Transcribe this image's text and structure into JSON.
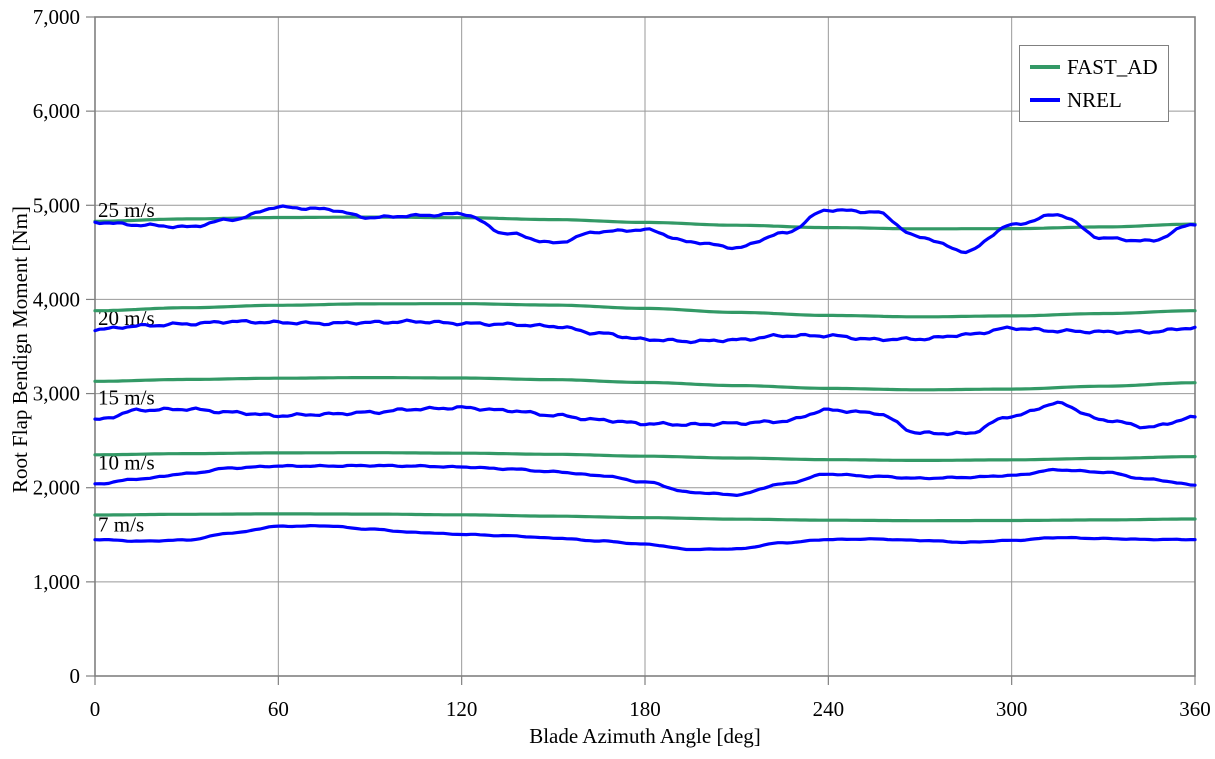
{
  "chart_data": {
    "type": "line",
    "title": "",
    "xlabel": "Blade Azimuth Angle [deg]",
    "ylabel": "Root Flap Bendign Moment [Nm]",
    "xlim": [
      0,
      360
    ],
    "ylim": [
      0,
      7000
    ],
    "x_ticks": [
      0,
      60,
      120,
      180,
      240,
      300,
      360
    ],
    "x_tick_labels": [
      "0",
      "60",
      "120",
      "180",
      "240",
      "300",
      "360"
    ],
    "y_ticks": [
      0,
      1000,
      2000,
      3000,
      4000,
      5000,
      6000,
      7000
    ],
    "y_tick_labels": [
      "0",
      "1,000",
      "2,000",
      "3,000",
      "4,000",
      "5,000",
      "6,000",
      "7,000"
    ],
    "grid": true,
    "colors": {
      "fast_ad": "#339966",
      "nrel": "#0000ff",
      "gridline": "#999999",
      "plot_border": "#808080",
      "tick": "#808080",
      "text": "#000000"
    },
    "legend": {
      "position": "top-right",
      "items": [
        {
          "label": "FAST_AD",
          "color": "#339966"
        },
        {
          "label": "NREL",
          "color": "#0000ff"
        }
      ]
    },
    "annotations": [
      {
        "text": "25 m/s",
        "x": 1,
        "y": 4950
      },
      {
        "text": "20 m/s",
        "x": 1,
        "y": 3805
      },
      {
        "text": "15 m/s",
        "x": 1,
        "y": 2960
      },
      {
        "text": "10 m/s",
        "x": 1,
        "y": 2270
      },
      {
        "text": "7 m/s",
        "x": 1,
        "y": 1610
      }
    ],
    "series": [
      {
        "name": "FAST_AD 25 m/s",
        "group": "FAST_AD",
        "wind_speed": "25 m/s",
        "color": "#339966",
        "noise": 0,
        "x_step": 30,
        "values": [
          4830,
          4855,
          4870,
          4875,
          4868,
          4848,
          4818,
          4788,
          4763,
          4750,
          4752,
          4770,
          4800
        ]
      },
      {
        "name": "FAST_AD 20 m/s",
        "group": "FAST_AD",
        "wind_speed": "20 m/s",
        "color": "#339966",
        "noise": 0,
        "x_step": 30,
        "values": [
          3880,
          3912,
          3938,
          3953,
          3955,
          3940,
          3905,
          3862,
          3830,
          3815,
          3825,
          3850,
          3880
        ]
      },
      {
        "name": "FAST_AD 15 m/s",
        "group": "FAST_AD",
        "wind_speed": "15 m/s",
        "color": "#339966",
        "noise": 0,
        "x_step": 30,
        "values": [
          3130,
          3150,
          3163,
          3170,
          3165,
          3148,
          3118,
          3085,
          3055,
          3040,
          3048,
          3078,
          3115
        ]
      },
      {
        "name": "FAST_AD 10 m/s",
        "group": "FAST_AD",
        "wind_speed": "10 m/s",
        "color": "#339966",
        "noise": 0,
        "x_step": 30,
        "values": [
          2350,
          2362,
          2370,
          2372,
          2367,
          2355,
          2335,
          2315,
          2298,
          2290,
          2296,
          2312,
          2330
        ]
      },
      {
        "name": "FAST_AD 7 m/s",
        "group": "FAST_AD",
        "wind_speed": "7 m/s",
        "color": "#339966",
        "noise": 0,
        "x_step": 30,
        "values": [
          1710,
          1718,
          1722,
          1720,
          1712,
          1698,
          1682,
          1666,
          1655,
          1650,
          1652,
          1658,
          1668
        ]
      },
      {
        "name": "NREL 25 m/s",
        "group": "NREL",
        "wind_speed": "25 m/s",
        "color": "#0000ff",
        "noise": 14,
        "x_step": 15,
        "values": [
          4820,
          4790,
          4770,
          4850,
          4980,
          4960,
          4870,
          4890,
          4910,
          4700,
          4600,
          4720,
          4740,
          4610,
          4550,
          4700,
          4950,
          4930,
          4660,
          4510,
          4790,
          4900,
          4650,
          4620,
          4800
        ]
      },
      {
        "name": "NREL 20 m/s",
        "group": "NREL",
        "wind_speed": "20 m/s",
        "color": "#0000ff",
        "noise": 16,
        "x_step": 15,
        "values": [
          3680,
          3720,
          3740,
          3765,
          3755,
          3745,
          3755,
          3765,
          3745,
          3735,
          3715,
          3640,
          3575,
          3555,
          3570,
          3615,
          3615,
          3575,
          3580,
          3625,
          3695,
          3665,
          3655,
          3655,
          3700
        ]
      },
      {
        "name": "NREL 15 m/s",
        "group": "NREL",
        "wind_speed": "15 m/s",
        "color": "#0000ff",
        "noise": 16,
        "x_step": 15,
        "values": [
          2720,
          2825,
          2835,
          2800,
          2765,
          2780,
          2800,
          2835,
          2850,
          2820,
          2770,
          2720,
          2680,
          2670,
          2685,
          2705,
          2825,
          2795,
          2580,
          2575,
          2760,
          2895,
          2720,
          2645,
          2745
        ]
      },
      {
        "name": "NREL 10 m/s",
        "group": "NREL",
        "wind_speed": "10 m/s",
        "color": "#0000ff",
        "noise": 7,
        "x_step": 15,
        "values": [
          2040,
          2095,
          2150,
          2210,
          2230,
          2230,
          2235,
          2230,
          2220,
          2200,
          2170,
          2130,
          2060,
          1950,
          1925,
          2040,
          2145,
          2120,
          2100,
          2110,
          2130,
          2190,
          2165,
          2090,
          2030
        ]
      },
      {
        "name": "NREL 7 m/s",
        "group": "NREL",
        "wind_speed": "7 m/s",
        "color": "#0000ff",
        "noise": 4,
        "x_step": 15,
        "values": [
          1450,
          1432,
          1445,
          1520,
          1590,
          1595,
          1560,
          1525,
          1505,
          1490,
          1465,
          1435,
          1400,
          1345,
          1350,
          1415,
          1450,
          1455,
          1440,
          1420,
          1440,
          1470,
          1460,
          1450,
          1450
        ]
      }
    ]
  }
}
